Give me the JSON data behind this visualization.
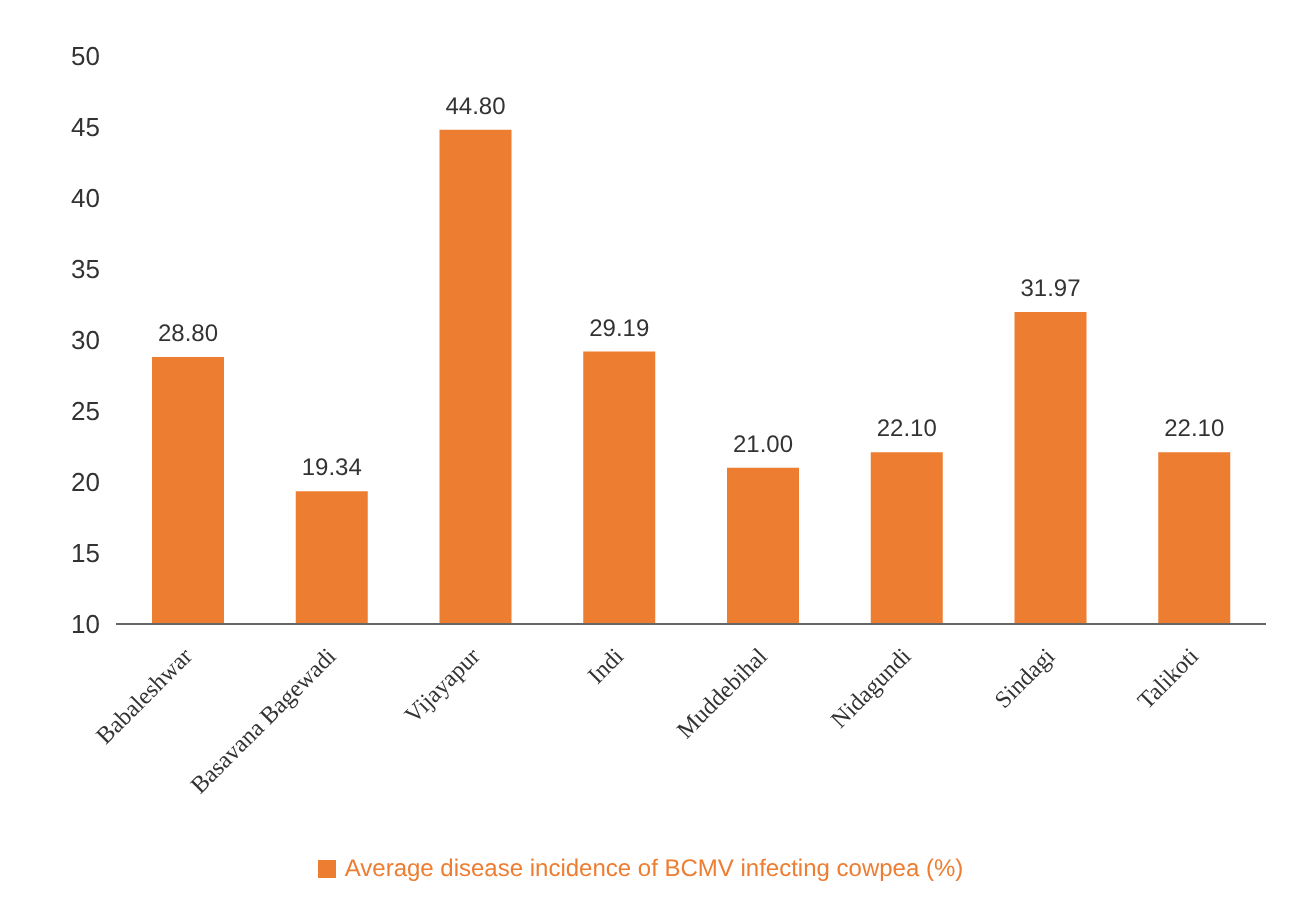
{
  "chart_data": {
    "type": "bar",
    "categories": [
      "Babaleshwar",
      "Basavana Bagewadi",
      "Vijayapur",
      "Indi",
      "Muddebihal",
      "Nidagundi",
      "Sindagi",
      "Talikoti"
    ],
    "series": [
      {
        "name": "Average disease incidence of BCMV infecting cowpea (%)",
        "color": "#ed7d31",
        "values": [
          28.8,
          19.34,
          44.8,
          29.19,
          21.0,
          22.1,
          31.97,
          22.1
        ]
      }
    ],
    "value_labels": [
      "28.80",
      "19.34",
      "44.80",
      "29.19",
      "21.00",
      "22.10",
      "31.97",
      "22.10"
    ],
    "ylim": [
      10,
      50
    ],
    "yticks": [
      10,
      15,
      20,
      25,
      30,
      35,
      40,
      45,
      50
    ],
    "grid": false,
    "legend": "bottom"
  }
}
